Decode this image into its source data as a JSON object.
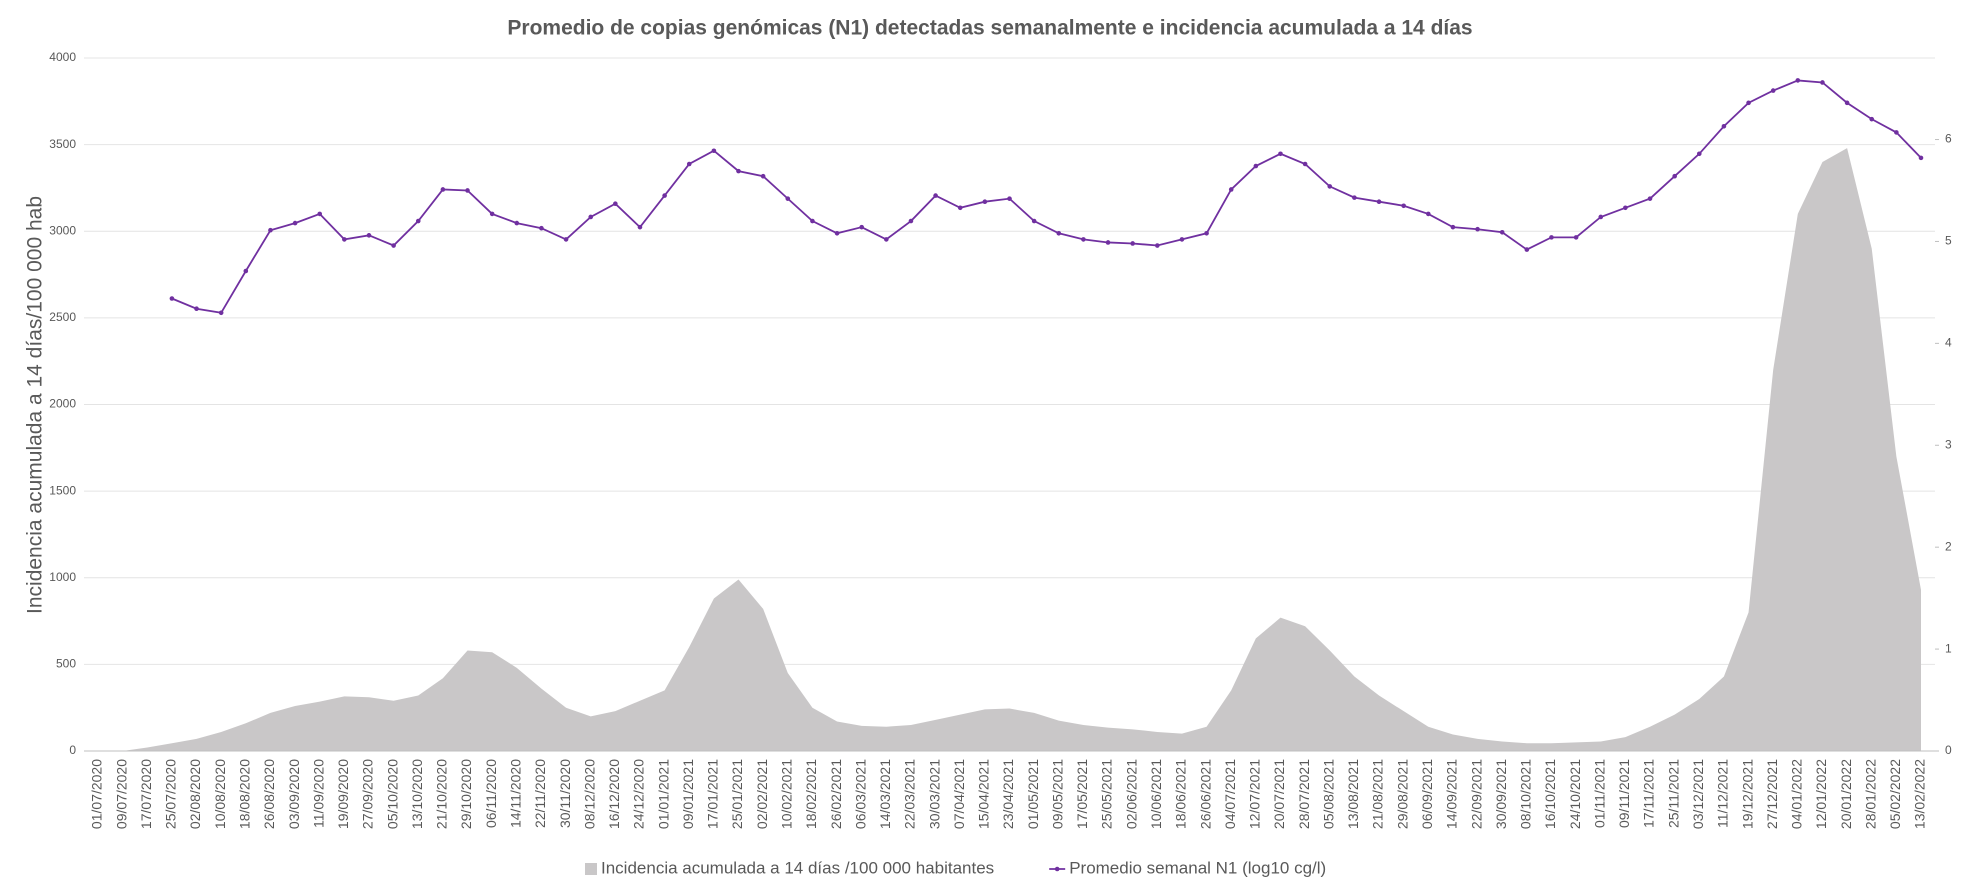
{
  "chart_data": {
    "type": "area-line",
    "title": "Promedio de copias genómicas (N1) detectadas semanalmente e incidencia acumulada a 14 días",
    "y_label": "Incidencia acumulada a 14 días/100 000 hab",
    "categories": [
      "01/07/2020",
      "09/07/2020",
      "17/07/2020",
      "25/07/2020",
      "02/08/2020",
      "10/08/2020",
      "18/08/2020",
      "26/08/2020",
      "03/09/2020",
      "11/09/2020",
      "19/09/2020",
      "27/09/2020",
      "05/10/2020",
      "13/10/2020",
      "21/10/2020",
      "29/10/2020",
      "06/11/2020",
      "14/11/2020",
      "22/11/2020",
      "30/11/2020",
      "08/12/2020",
      "16/12/2020",
      "24/12/2020",
      "01/01/2021",
      "09/01/2021",
      "17/01/2021",
      "25/01/2021",
      "02/02/2021",
      "10/02/2021",
      "18/02/2021",
      "26/02/2021",
      "06/03/2021",
      "14/03/2021",
      "22/03/2021",
      "30/03/2021",
      "07/04/2021",
      "15/04/2021",
      "23/04/2021",
      "01/05/2021",
      "09/05/2021",
      "17/05/2021",
      "25/05/2021",
      "02/06/2021",
      "10/06/2021",
      "18/06/2021",
      "26/06/2021",
      "04/07/2021",
      "12/07/2021",
      "20/07/2021",
      "28/07/2021",
      "05/08/2021",
      "13/08/2021",
      "21/08/2021",
      "29/08/2021",
      "06/09/2021",
      "14/09/2021",
      "22/09/2021",
      "30/09/2021",
      "08/10/2021",
      "16/10/2021",
      "24/10/2021",
      "01/11/2021",
      "09/11/2021",
      "17/11/2021",
      "25/11/2021",
      "03/12/2021",
      "11/12/2021",
      "19/12/2021",
      "27/12/2021",
      "04/01/2022",
      "12/01/2022",
      "20/01/2022",
      "28/01/2022",
      "05/02/2022",
      "13/02/2022"
    ],
    "series": [
      {
        "name": "Incidencia acumulada a 14 días /100 000 habitantes",
        "type": "area",
        "color": "#c9c7c8",
        "values": [
          0,
          0,
          20,
          45,
          70,
          110,
          160,
          220,
          260,
          285,
          315,
          310,
          290,
          320,
          420,
          580,
          570,
          480,
          360,
          250,
          200,
          230,
          290,
          350,
          600,
          880,
          990,
          820,
          450,
          250,
          170,
          145,
          140,
          150,
          180,
          210,
          240,
          245,
          220,
          175,
          150,
          135,
          125,
          110,
          100,
          140,
          350,
          650,
          770,
          720,
          580,
          430,
          320,
          230,
          140,
          95,
          70,
          55,
          45,
          45,
          50,
          55,
          80,
          140,
          210,
          300,
          430,
          800,
          2200,
          3100,
          3400,
          3480,
          2900,
          1700,
          930
        ]
      },
      {
        "name": "Promedio semanal N1 (log10 cg/l)",
        "type": "line",
        "axis": "y2",
        "color": "#7030a0",
        "values": [
          null,
          null,
          null,
          4.44,
          4.34,
          4.3,
          4.71,
          5.11,
          5.18,
          5.27,
          5.02,
          5.06,
          4.96,
          5.2,
          5.51,
          5.5,
          5.27,
          5.18,
          5.13,
          5.02,
          5.24,
          5.37,
          5.14,
          5.45,
          5.76,
          5.89,
          5.69,
          5.64,
          5.42,
          5.2,
          5.08,
          5.14,
          5.02,
          5.2,
          5.45,
          5.33,
          5.39,
          5.42,
          5.2,
          5.08,
          5.02,
          4.99,
          4.98,
          4.96,
          5.02,
          5.08,
          5.51,
          5.74,
          5.86,
          5.76,
          5.54,
          5.43,
          5.39,
          5.35,
          5.27,
          5.14,
          5.12,
          5.09,
          4.92,
          5.04,
          5.04,
          5.24,
          5.33,
          5.42,
          5.64,
          5.86,
          6.13,
          6.36,
          6.48,
          6.58,
          6.56,
          6.36,
          6.2,
          6.07,
          5.82
        ]
      }
    ],
    "ylim": [
      0,
      4000
    ],
    "yticks": [
      0,
      500,
      1000,
      1500,
      2000,
      2500,
      3000,
      3500,
      4000
    ],
    "y2lim": [
      0,
      6.8
    ],
    "y2ticks": [
      0,
      1,
      2,
      3,
      4,
      5,
      6
    ],
    "grid": true
  }
}
